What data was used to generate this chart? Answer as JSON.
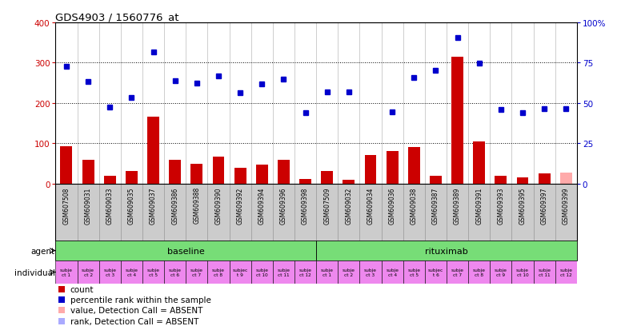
{
  "title": "GDS4903 / 1560776_at",
  "samples": [
    "GSM607508",
    "GSM609031",
    "GSM609033",
    "GSM609035",
    "GSM609037",
    "GSM609386",
    "GSM609388",
    "GSM609390",
    "GSM609392",
    "GSM609394",
    "GSM609396",
    "GSM609398",
    "GSM607509",
    "GSM609032",
    "GSM609034",
    "GSM609036",
    "GSM609038",
    "GSM609387",
    "GSM609389",
    "GSM609391",
    "GSM609393",
    "GSM609395",
    "GSM609397",
    "GSM609399"
  ],
  "counts": [
    93,
    58,
    20,
    30,
    165,
    58,
    48,
    67,
    38,
    47,
    58,
    12,
    30,
    10,
    70,
    80,
    90,
    20,
    315,
    105,
    20,
    15,
    25,
    28
  ],
  "ranks": [
    290,
    253,
    190,
    213,
    327,
    255,
    250,
    267,
    225,
    248,
    260,
    175,
    228,
    227,
    null,
    178,
    263,
    280,
    362,
    299,
    183,
    175,
    185,
    185
  ],
  "absent_value_idx": [
    23
  ],
  "absent_rank_idx": [
    14
  ],
  "individuals": [
    "subje\nct 1",
    "subje\nct 2",
    "subje\nct 3",
    "subje\nct 4",
    "subje\nct 5",
    "subje\nct 6",
    "subje\nct 7",
    "subje\nct 8",
    "subjec\nt 9",
    "subje\nct 10",
    "subje\nct 11",
    "subje\nct 12",
    "subje\nct 1",
    "subje\nct 2",
    "subje\nct 3",
    "subje\nct 4",
    "subje\nct 5",
    "subjec\nt 6",
    "subje\nct 7",
    "subje\nct 8",
    "subje\nct 9",
    "subje\nct 10",
    "subje\nct 11",
    "subje\nct 12"
  ],
  "agents": [
    {
      "label": "baseline",
      "start": 0,
      "end": 12
    },
    {
      "label": "rituximab",
      "start": 12,
      "end": 24
    }
  ],
  "bar_color": "#cc0000",
  "dot_color": "#0000cc",
  "absent_bar_color": "#ffaaaa",
  "absent_rank_color": "#aaaaff",
  "agent_color": "#77dd77",
  "individual_bg": "#ee88ee",
  "sample_label_bg": "#cccccc",
  "ylim_left": [
    0,
    400
  ],
  "ylim_right": [
    0,
    100
  ],
  "yticks_left": [
    0,
    100,
    200,
    300,
    400
  ],
  "yticks_right": [
    0,
    25,
    50,
    75,
    100
  ],
  "dotted_lines": [
    100,
    200,
    300
  ],
  "legend_items": [
    {
      "color": "#cc0000",
      "marker": "s",
      "label": "count"
    },
    {
      "color": "#0000cc",
      "marker": "s",
      "label": "percentile rank within the sample"
    },
    {
      "color": "#ffaaaa",
      "marker": "s",
      "label": "value, Detection Call = ABSENT"
    },
    {
      "color": "#aaaaff",
      "marker": "s",
      "label": "rank, Detection Call = ABSENT"
    }
  ]
}
